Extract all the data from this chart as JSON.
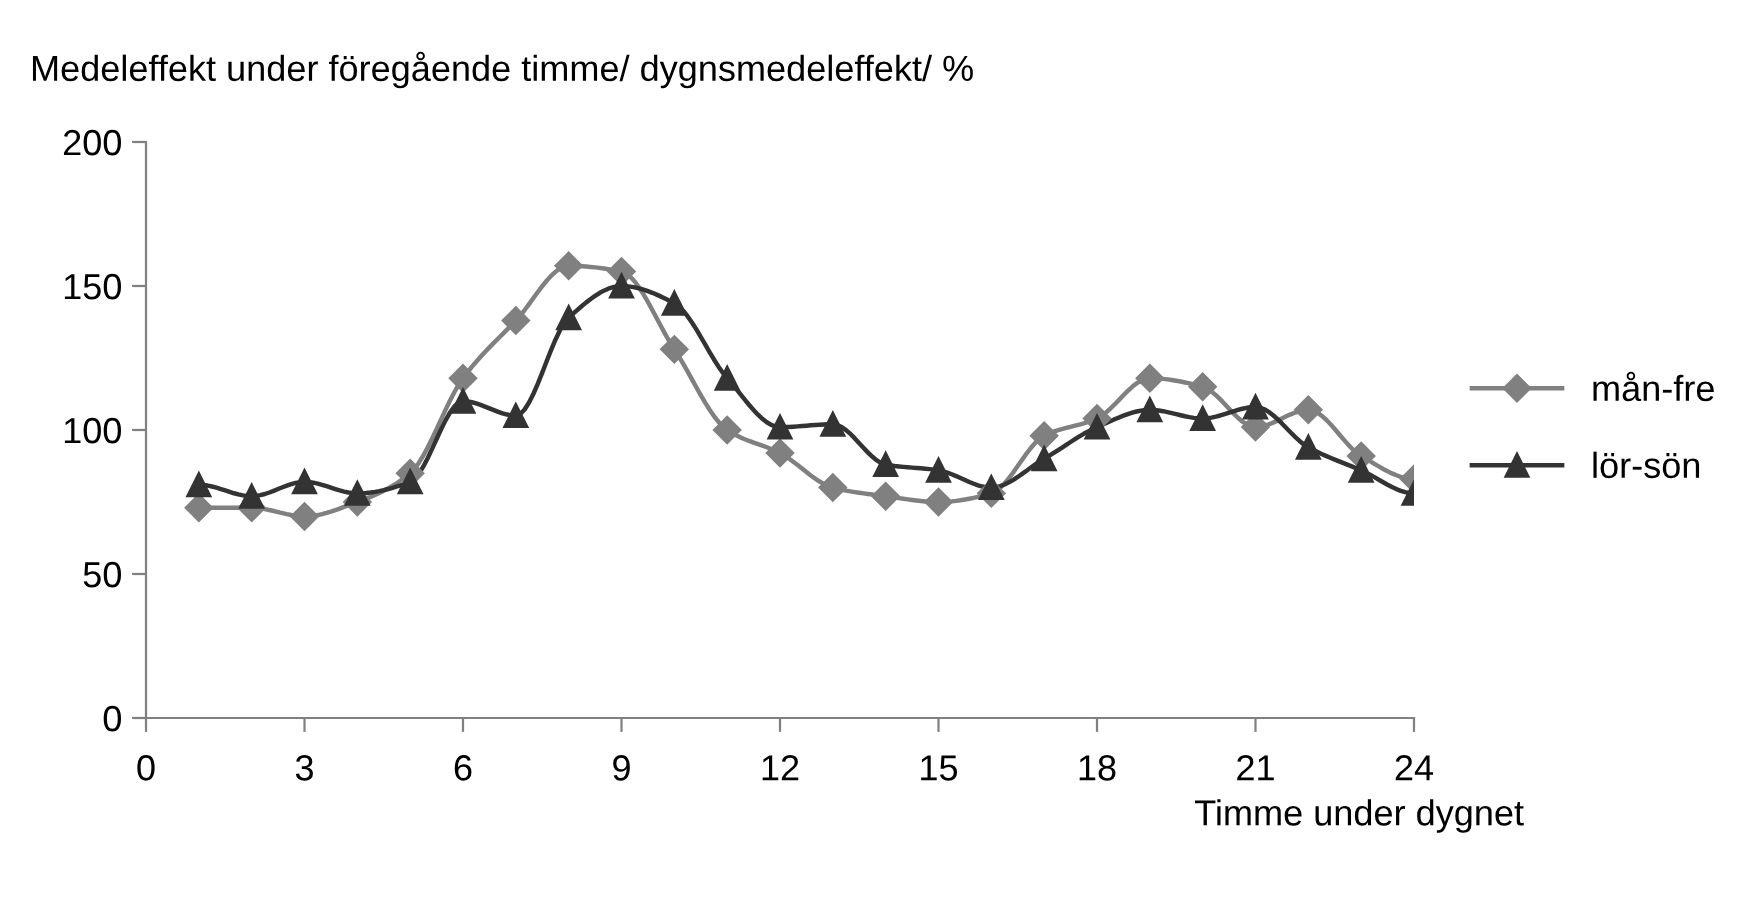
{
  "chart_data": {
    "type": "line",
    "ylabel": "Medeleffekt under föregående timme/ dygnsmedeleffekt/ %",
    "xlabel": "Timme under dygnet",
    "x": [
      1,
      2,
      3,
      4,
      5,
      6,
      7,
      8,
      9,
      10,
      11,
      12,
      13,
      14,
      15,
      16,
      17,
      18,
      19,
      20,
      21,
      22,
      23,
      24
    ],
    "xlim": [
      0,
      24
    ],
    "xticks": [
      0,
      3,
      6,
      9,
      12,
      15,
      18,
      21,
      24
    ],
    "ylim": [
      0,
      200
    ],
    "yticks": [
      0,
      50,
      100,
      150,
      200
    ],
    "grid": false,
    "legend": "right",
    "series": [
      {
        "name": "mån-fre",
        "color": "#808080",
        "marker": "diamond",
        "values": [
          73,
          73,
          70,
          75,
          85,
          118,
          138,
          157,
          155,
          128,
          100,
          92,
          80,
          77,
          75,
          78,
          98,
          104,
          118,
          115,
          101,
          107,
          91,
          83
        ]
      },
      {
        "name": "lör-sön",
        "color": "#333333",
        "marker": "triangle",
        "values": [
          81,
          77,
          82,
          78,
          82,
          110,
          105,
          139,
          150,
          144,
          118,
          101,
          102,
          88,
          86,
          80,
          90,
          101,
          107,
          104,
          108,
          94,
          86,
          78
        ]
      }
    ]
  }
}
